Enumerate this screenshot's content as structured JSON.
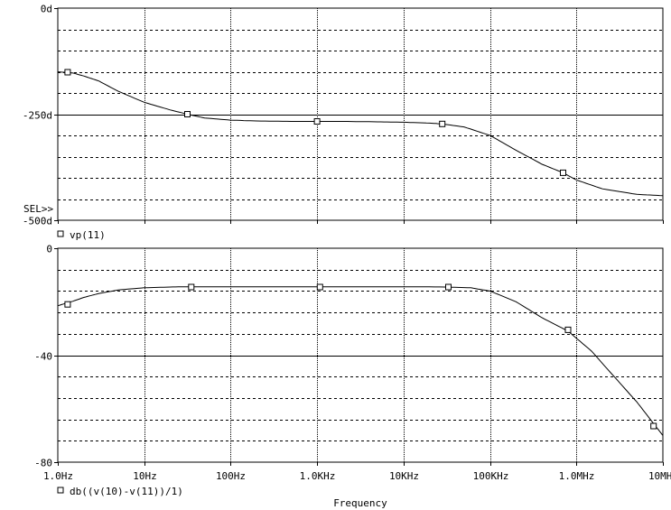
{
  "chart_data": [
    {
      "type": "line",
      "ylim": [
        -500,
        0
      ],
      "y_ticks": [
        {
          "value": 0,
          "label": "0d"
        },
        {
          "value": -250,
          "label": "-250d"
        },
        {
          "value": -500,
          "label": "-500d"
        }
      ],
      "sel_marker": "SEL>>",
      "series": [
        {
          "name": "vp(11)",
          "marker": "square",
          "x": [
            1,
            1.5,
            2,
            3,
            5,
            10,
            20,
            31.6,
            50,
            100,
            200,
            500,
            1000,
            2000,
            5000,
            10000,
            20000,
            28000,
            50000,
            100000,
            200000,
            400000,
            700000,
            1000000,
            2000000,
            5000000,
            10000000
          ],
          "y": [
            -150,
            -153,
            -160,
            -172,
            -196,
            -222,
            -240,
            -250,
            -259,
            -264,
            -266,
            -267,
            -267,
            -267,
            -268,
            -269,
            -271,
            -273,
            -280,
            -300,
            -335,
            -368,
            -388,
            -405,
            -426,
            -439,
            -442
          ]
        }
      ],
      "marker_points": [
        {
          "x": 1.3,
          "y": -151
        },
        {
          "x": 31.6,
          "y": -250
        },
        {
          "x": 1000,
          "y": -267
        },
        {
          "x": 28000,
          "y": -273
        },
        {
          "x": 700000,
          "y": -388
        }
      ]
    },
    {
      "type": "line",
      "ylim": [
        -80,
        0
      ],
      "y_ticks": [
        {
          "value": 0,
          "label": "0"
        },
        {
          "value": -40,
          "label": "-40"
        },
        {
          "value": -80,
          "label": "-80"
        }
      ],
      "xlabel": "Frequency",
      "x_scale": "log",
      "xlim": [
        1,
        10000000
      ],
      "x_ticks": [
        {
          "value": 1,
          "label": "1.0Hz"
        },
        {
          "value": 10,
          "label": "10Hz"
        },
        {
          "value": 100,
          "label": "100Hz"
        },
        {
          "value": 1000,
          "label": "1.0KHz"
        },
        {
          "value": 10000,
          "label": "10KHz"
        },
        {
          "value": 100000,
          "label": "100KHz"
        },
        {
          "value": 1000000,
          "label": "1.0MHz"
        },
        {
          "value": 10000000,
          "label": "10MHz"
        }
      ],
      "series": [
        {
          "name": "db((v(10)-v(11))/1)",
          "marker": "square",
          "x": [
            1,
            1.5,
            2,
            3,
            5,
            10,
            20,
            35,
            100,
            1000,
            10000,
            30000,
            60000,
            100000,
            200000,
            400000,
            800000,
            1500000,
            3000000,
            5000000,
            8000000,
            10000000
          ],
          "y": [
            -21.5,
            -19.8,
            -18.4,
            -16.9,
            -15.6,
            -14.8,
            -14.5,
            -14.4,
            -14.4,
            -14.4,
            -14.4,
            -14.5,
            -14.8,
            -16,
            -20,
            -26,
            -31,
            -38.5,
            -49.5,
            -57.5,
            -66,
            -70
          ]
        }
      ],
      "marker_points": [
        {
          "x": 1.3,
          "y": -21
        },
        {
          "x": 35,
          "y": -14.5
        },
        {
          "x": 1080,
          "y": -14.5
        },
        {
          "x": 33000,
          "y": -14.5
        },
        {
          "x": 800000,
          "y": -30.5
        },
        {
          "x": 7800000,
          "y": -66.5
        }
      ]
    }
  ]
}
